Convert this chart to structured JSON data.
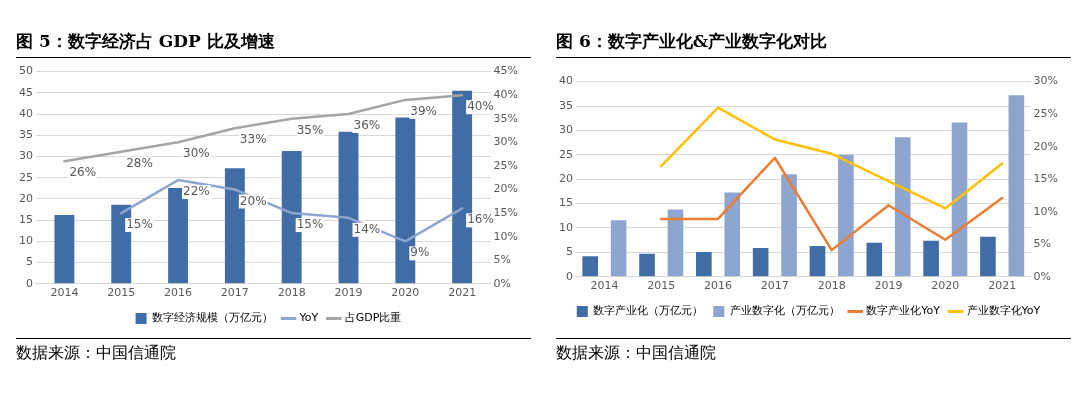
{
  "chart_data": [
    {
      "type": "bar",
      "title": "图 5：数字经济占 GDP 比及增速",
      "categories": [
        "2014",
        "2015",
        "2016",
        "2017",
        "2018",
        "2019",
        "2020",
        "2021"
      ],
      "series": [
        {
          "name": "数字经济规模（万亿元）",
          "color": "#416ca6",
          "values": [
            16.2,
            18.6,
            22.6,
            27.2,
            31.3,
            35.8,
            39.2,
            45.5
          ]
        },
        {
          "name": "YoY",
          "type": "line",
          "axis": "y2",
          "color": "#8ea5cf",
          "values": [
            null,
            15,
            22,
            20,
            15,
            14,
            9,
            16
          ],
          "value_labels": [
            null,
            "15%",
            "22%",
            "20%",
            "15%",
            "14%",
            "9%",
            "16%"
          ]
        },
        {
          "name": "占GDP比重",
          "type": "line",
          "axis": "y2",
          "color": "#a5a5a5",
          "values": [
            26,
            28,
            30,
            33,
            35,
            36,
            39,
            40
          ],
          "value_labels": [
            "26%",
            "28%",
            "30%",
            "33%",
            "35%",
            "36%",
            "39%",
            "40%"
          ]
        }
      ],
      "ylim": [
        0,
        50
      ],
      "yticks": [
        0,
        5,
        10,
        15,
        20,
        25,
        30,
        35,
        40,
        45,
        50
      ],
      "y2lim": [
        0,
        45
      ],
      "y2ticks": [
        {
          "value": 0,
          "label": "0%"
        },
        {
          "value": 5,
          "label": "5%"
        },
        {
          "value": 10,
          "label": "10%"
        },
        {
          "value": 15,
          "label": "15%"
        },
        {
          "value": 20,
          "label": "20%"
        },
        {
          "value": 25,
          "label": "25%"
        },
        {
          "value": 30,
          "label": "30%"
        },
        {
          "value": 35,
          "label": "35%"
        },
        {
          "value": 40,
          "label": "40%"
        },
        {
          "value": 45,
          "label": "45%"
        }
      ],
      "grid": "y",
      "legend": "bottom",
      "marker": "none",
      "annotations": [
        "数据来源：中国信通院"
      ]
    },
    {
      "type": "bar",
      "title": "图 6：数字产业化&产业数字化对比",
      "categories": [
        "2014",
        "2015",
        "2016",
        "2017",
        "2018",
        "2019",
        "2020",
        "2021"
      ],
      "series": [
        {
          "name": "数字产业化（万亿元）",
          "color": "#416ca6",
          "values": [
            4.2,
            4.7,
            5.1,
            5.9,
            6.3,
            7.0,
            7.4,
            8.2
          ]
        },
        {
          "name": "产业数字化（万亿元）",
          "color": "#8ea5cf",
          "values": [
            11.6,
            13.8,
            17.3,
            21.0,
            25.0,
            28.6,
            31.6,
            37.2
          ]
        },
        {
          "name": "数字产业化YoY",
          "type": "line",
          "axis": "y2",
          "color": "#ed7d31",
          "values": [
            null,
            8.9,
            8.9,
            18.3,
            4.1,
            11.0,
            5.7,
            12.1
          ]
        },
        {
          "name": "产业数字化YoY",
          "type": "line",
          "axis": "y2",
          "color": "#ffc000",
          "values": [
            null,
            17.0,
            26.0,
            21.1,
            18.9,
            14.7,
            10.5,
            17.4
          ]
        }
      ],
      "ylim": [
        0,
        40
      ],
      "yticks": [
        0,
        5,
        10,
        15,
        20,
        25,
        30,
        35,
        40
      ],
      "y2lim": [
        0,
        30
      ],
      "y2ticks": [
        {
          "value": 0,
          "label": "0%"
        },
        {
          "value": 5,
          "label": "5%"
        },
        {
          "value": 10,
          "label": "10%"
        },
        {
          "value": 15,
          "label": "15%"
        },
        {
          "value": 20,
          "label": "20%"
        },
        {
          "value": 25,
          "label": "25%"
        },
        {
          "value": 30,
          "label": "30%"
        }
      ],
      "grid": "y",
      "legend": "bottom",
      "marker": "none",
      "annotations": [
        "数据来源：中国信通院"
      ]
    }
  ]
}
